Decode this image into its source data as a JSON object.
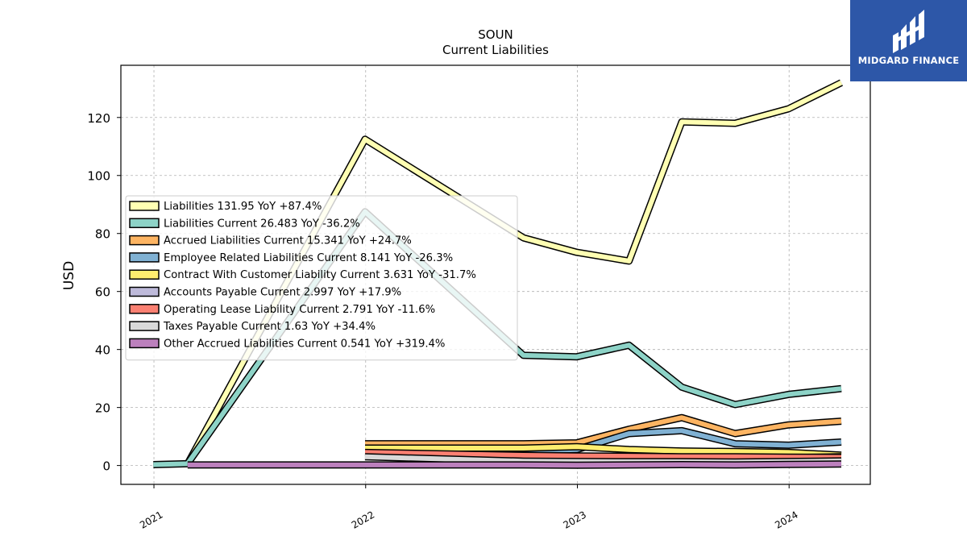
{
  "chart_data": {
    "type": "line",
    "title": "SOUN",
    "subtitle": "Current  Liabilities",
    "ylabel": "USD",
    "xlabel": "",
    "xlim": [
      "2020-11-05",
      "2024-05-20"
    ],
    "ylim": [
      -6.5,
      138
    ],
    "yticks": [
      0,
      20,
      40,
      60,
      80,
      100,
      120
    ],
    "xticks": [
      "2021",
      "2022",
      "2023",
      "2024"
    ],
    "grid": true,
    "legend_position": "center-left",
    "series": [
      {
        "name": "Liabilities",
        "legend": "Liabilities  131.95 YoY +87.4%",
        "color": "#ffffb3",
        "x": [
          "2021-02-28",
          "2021-12-31",
          "2022-09-30",
          "2022-12-31",
          "2023-03-31",
          "2023-06-30",
          "2023-09-30",
          "2023-12-31",
          "2024-03-31"
        ],
        "y": [
          0.6,
          112.5,
          78.5,
          73.5,
          70.5,
          118.5,
          118.0,
          123.0,
          132.0
        ]
      },
      {
        "name": "Liabilities Current",
        "legend": "Liabilities Current  26.483 YoY -36.2%",
        "color": "#8dd3c7",
        "x": [
          "2020-12-31",
          "2021-02-28",
          "2021-12-31",
          "2022-09-30",
          "2022-12-31",
          "2023-03-31",
          "2023-06-30",
          "2023-09-30",
          "2023-12-31",
          "2024-03-31"
        ],
        "y": [
          0.3,
          0.6,
          87.5,
          38.0,
          37.5,
          41.5,
          27.0,
          21.0,
          24.5,
          26.5
        ]
      },
      {
        "name": "Accrued Liabilities Current",
        "legend": "Accrued Liabilities Current  15.341 YoY +24.7%",
        "color": "#fdb462",
        "x": [
          "2021-12-31",
          "2022-09-30",
          "2022-12-31",
          "2023-03-31",
          "2023-06-30",
          "2023-09-30",
          "2023-12-31",
          "2024-03-31"
        ],
        "y": [
          7.5,
          7.5,
          7.8,
          12.5,
          16.5,
          11.0,
          14.0,
          15.3
        ]
      },
      {
        "name": "Employee Related Liabilities Current",
        "legend": "Employee Related Liabilities Current  8.141 YoY -26.3%",
        "color": "#80b1d3",
        "x": [
          "2021-12-31",
          "2022-09-30",
          "2022-12-31",
          "2023-03-31",
          "2023-06-30",
          "2023-09-30",
          "2023-12-31",
          "2024-03-31"
        ],
        "y": [
          5.0,
          5.0,
          5.5,
          11.0,
          12.0,
          7.5,
          7.0,
          8.1
        ]
      },
      {
        "name": "Contract With Customer Liability Current",
        "legend": "Contract With Customer Liability Current  3.631 YoY -31.7%",
        "color": "#ffed6f",
        "x": [
          "2021-12-31",
          "2022-09-30",
          "2022-12-31",
          "2023-03-31",
          "2023-06-30",
          "2023-09-30",
          "2023-12-31",
          "2024-03-31"
        ],
        "y": [
          6.0,
          6.0,
          6.5,
          5.5,
          5.0,
          4.8,
          4.5,
          3.6
        ]
      },
      {
        "name": "Accounts Payable Current",
        "legend": "Accounts Payable Current  2.997 YoY +17.9%",
        "color": "#bebada",
        "x": [
          "2021-12-31",
          "2022-09-30",
          "2022-12-31",
          "2023-03-31",
          "2023-06-30",
          "2023-09-30",
          "2023-12-31",
          "2024-03-31"
        ],
        "y": [
          4.0,
          3.5,
          3.0,
          2.8,
          2.6,
          2.5,
          2.7,
          3.0
        ]
      },
      {
        "name": "Operating Lease Liability Current",
        "legend": "Operating Lease Liability Current  2.791 YoY -11.6%",
        "color": "#fb8072",
        "x": [
          "2021-12-31",
          "2022-09-30",
          "2022-12-31",
          "2023-03-31",
          "2023-06-30",
          "2023-09-30",
          "2023-12-31",
          "2024-03-31"
        ],
        "y": [
          4.5,
          3.5,
          3.3,
          3.2,
          3.0,
          3.0,
          2.9,
          2.8
        ]
      },
      {
        "name": "Taxes Payable Current",
        "legend": "Taxes Payable Current  1.63 YoY +34.4%",
        "color": "#d9d9d9",
        "x": [
          "2021-12-31",
          "2022-09-30",
          "2022-12-31",
          "2023-03-31",
          "2023-06-30",
          "2023-09-30",
          "2023-12-31",
          "2024-03-31"
        ],
        "y": [
          3.0,
          1.5,
          1.4,
          1.3,
          1.3,
          1.2,
          1.4,
          1.6
        ]
      },
      {
        "name": "Other Accrued Liabilities Current",
        "legend": "Other Accrued Liabilities Current  0.541 YoY +319.4%",
        "color": "#bc80bd",
        "x": [
          "2021-02-28",
          "2021-12-31",
          "2022-09-30",
          "2022-12-31",
          "2023-03-31",
          "2023-06-30",
          "2023-09-30",
          "2023-12-31",
          "2024-03-31"
        ],
        "y": [
          0.2,
          0.2,
          0.2,
          0.1,
          0.2,
          0.3,
          0.2,
          0.4,
          0.5
        ]
      }
    ]
  },
  "logo": {
    "text": "MIDGARD FINANCE"
  }
}
